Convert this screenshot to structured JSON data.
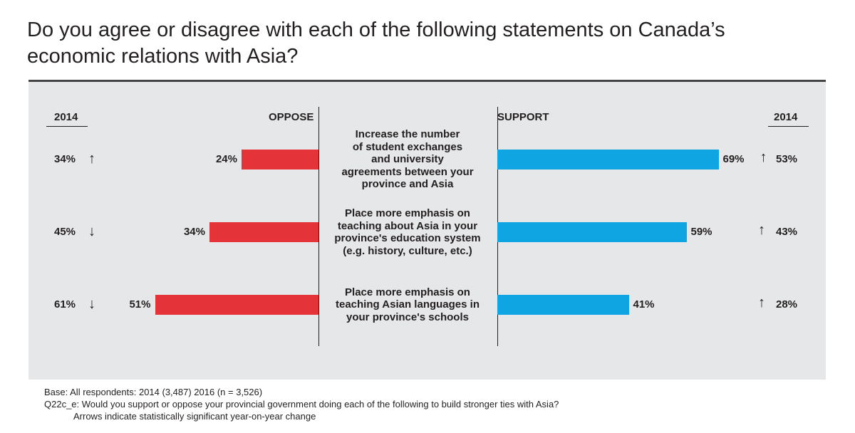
{
  "title": {
    "line1": "Do you agree or disagree with each of the following statements on Canada’s",
    "line2": "economic relations with Asia?"
  },
  "headers": {
    "left_year": "2014",
    "oppose": "OPPOSE",
    "support": "SUPPORT",
    "right_year": "2014"
  },
  "chart_data": {
    "type": "bar",
    "orientation": "horizontal-diverging",
    "unit": "%",
    "xlim": [
      0,
      100
    ],
    "series_colors": {
      "oppose": "#e4343a",
      "support": "#0ea5e2"
    },
    "categories": [
      {
        "label_lines": [
          "Increase the number",
          "of student exchanges",
          "and university",
          "agreements between your",
          "province and Asia"
        ],
        "oppose": 24,
        "oppose_label": "24%",
        "support": 69,
        "support_label": "69%",
        "oppose_2014": "34%",
        "oppose_arrow": "up",
        "support_2014": "53%",
        "support_arrow": "up"
      },
      {
        "label_lines": [
          "Place more emphasis on",
          "teaching about Asia in your",
          "province's education system",
          "(e.g. history, culture, etc.)"
        ],
        "oppose": 34,
        "oppose_label": "34%",
        "support": 59,
        "support_label": "59%",
        "oppose_2014": "45%",
        "oppose_arrow": "down",
        "support_2014": "43%",
        "support_arrow": "up"
      },
      {
        "label_lines": [
          "Place more emphasis on",
          "teaching Asian languages in",
          "your province's schools"
        ],
        "oppose": 51,
        "oppose_label": "51%",
        "support": 41,
        "support_label": "41%",
        "oppose_2014": "61%",
        "oppose_arrow": "down",
        "support_2014": "28%",
        "support_arrow": "up"
      }
    ]
  },
  "notes": {
    "base": "Base: All respondents: 2014 (3,487) 2016 (n = 3,526)",
    "question": "Q22c_e: Would you support or oppose your provincial government doing each of the following to build stronger ties with Asia?",
    "arrows": "Arrows indicate statistically significant year-on-year change"
  }
}
